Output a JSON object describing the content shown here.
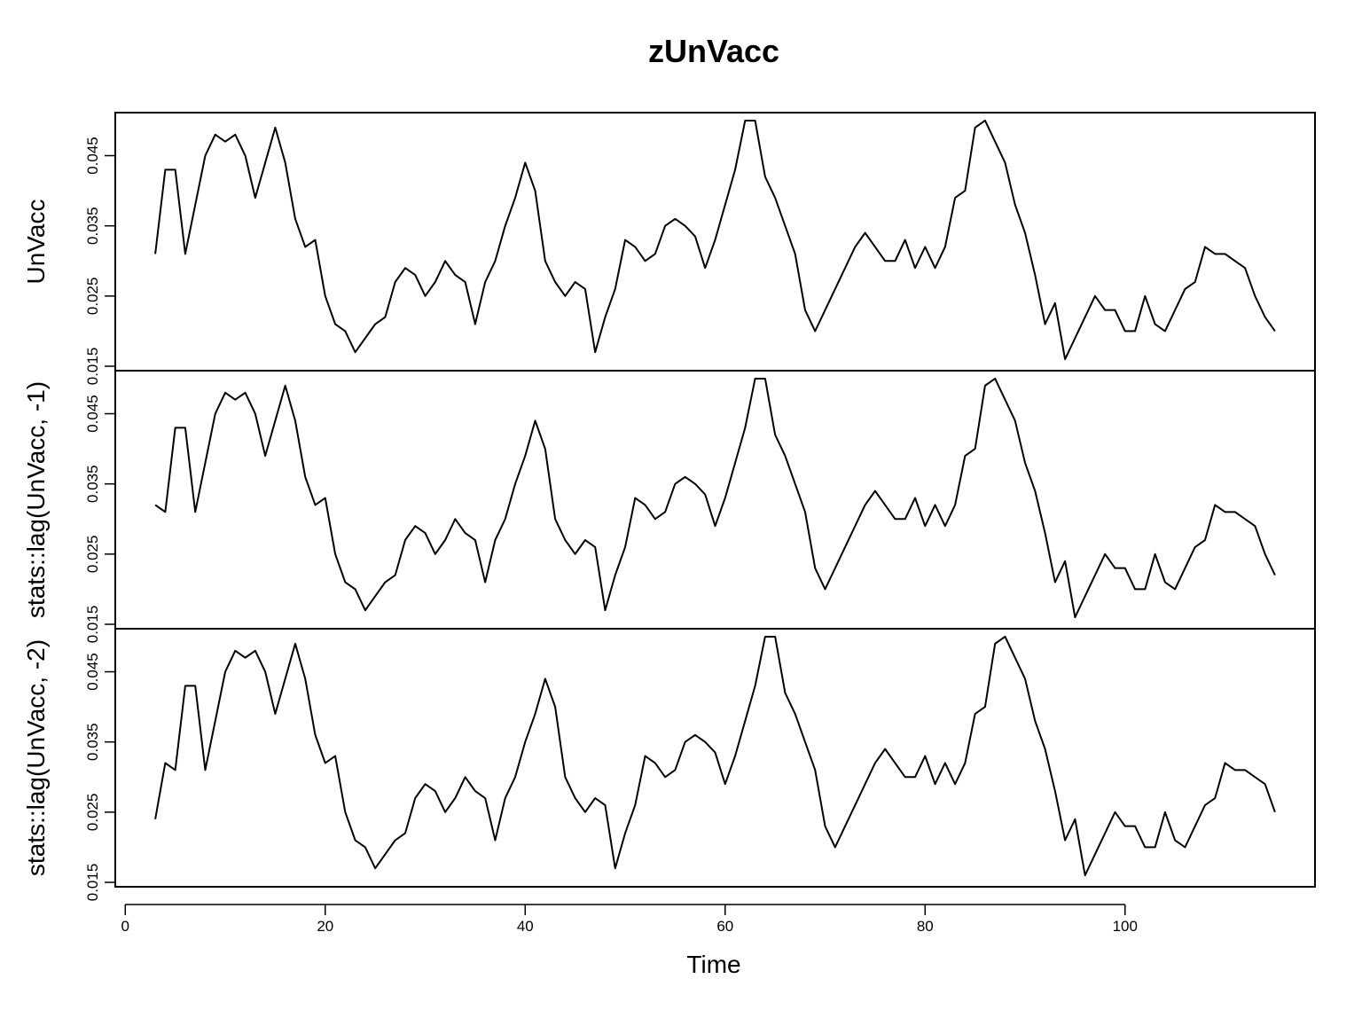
{
  "chart_data": {
    "type": "line",
    "title": "zUnVacc",
    "xlabel": "Time",
    "x_ticks": [
      "0",
      "20",
      "40",
      "60",
      "80",
      "100"
    ],
    "x_tick_values": [
      0,
      20,
      40,
      60,
      80,
      100
    ],
    "xlim": [
      -1,
      119
    ],
    "y_ticks": [
      "0.015",
      "0.025",
      "0.035",
      "0.045"
    ],
    "y_tick_values": [
      0.015,
      0.025,
      0.035,
      0.045
    ],
    "ylim": [
      0.015,
      0.0505
    ],
    "grid": false,
    "legend": "none",
    "series": [
      {
        "ylabel": "UnVacc",
        "x_start": 3,
        "values": [
          0.031,
          0.043,
          0.043,
          0.031,
          0.038,
          0.045,
          0.048,
          0.047,
          0.048,
          0.045,
          0.039,
          0.044,
          0.049,
          0.044,
          0.036,
          0.032,
          0.033,
          0.025,
          0.021,
          0.02,
          0.017,
          0.019,
          0.021,
          0.022,
          0.027,
          0.029,
          0.028,
          0.025,
          0.027,
          0.03,
          0.028,
          0.027,
          0.021,
          0.027,
          0.03,
          0.035,
          0.039,
          0.044,
          0.04,
          0.03,
          0.027,
          0.025,
          0.027,
          0.026,
          0.017,
          0.022,
          0.026,
          0.033,
          0.032,
          0.03,
          0.031,
          0.035,
          0.036,
          0.035,
          0.0335,
          0.029,
          0.033,
          0.038,
          0.043,
          0.05,
          0.05,
          0.042,
          0.039,
          0.035,
          0.031,
          0.023,
          0.02,
          0.023,
          0.026,
          0.029,
          0.032,
          0.034,
          0.032,
          0.03,
          0.03,
          0.033,
          0.029,
          0.032,
          0.029,
          0.032,
          0.039,
          0.04,
          0.049,
          0.05,
          0.047,
          0.044,
          0.038,
          0.034,
          0.028,
          0.021,
          0.024,
          0.016,
          0.019,
          0.022,
          0.025,
          0.023,
          0.023,
          0.02,
          0.02,
          0.025,
          0.021,
          0.02,
          0.023,
          0.026,
          0.027,
          0.032,
          0.031,
          0.031,
          0.03,
          0.029,
          0.025,
          0.022,
          0.02
        ]
      },
      {
        "ylabel": "stats::lag(UnVacc, -1)",
        "x_start": 3,
        "values": [
          0.032,
          0.031,
          0.043,
          0.043,
          0.031,
          0.038,
          0.045,
          0.048,
          0.047,
          0.048,
          0.045,
          0.039,
          0.044,
          0.049,
          0.044,
          0.036,
          0.032,
          0.033,
          0.025,
          0.021,
          0.02,
          0.017,
          0.019,
          0.021,
          0.022,
          0.027,
          0.029,
          0.028,
          0.025,
          0.027,
          0.03,
          0.028,
          0.027,
          0.021,
          0.027,
          0.03,
          0.035,
          0.039,
          0.044,
          0.04,
          0.03,
          0.027,
          0.025,
          0.027,
          0.026,
          0.017,
          0.022,
          0.026,
          0.033,
          0.032,
          0.03,
          0.031,
          0.035,
          0.036,
          0.035,
          0.0335,
          0.029,
          0.033,
          0.038,
          0.043,
          0.05,
          0.05,
          0.042,
          0.039,
          0.035,
          0.031,
          0.023,
          0.02,
          0.023,
          0.026,
          0.029,
          0.032,
          0.034,
          0.032,
          0.03,
          0.03,
          0.033,
          0.029,
          0.032,
          0.029,
          0.032,
          0.039,
          0.04,
          0.049,
          0.05,
          0.047,
          0.044,
          0.038,
          0.034,
          0.028,
          0.021,
          0.024,
          0.016,
          0.019,
          0.022,
          0.025,
          0.023,
          0.023,
          0.02,
          0.02,
          0.025,
          0.021,
          0.02,
          0.023,
          0.026,
          0.027,
          0.032,
          0.031,
          0.031,
          0.03,
          0.029,
          0.025,
          0.022
        ]
      },
      {
        "ylabel": "stats::lag(UnVacc, -2)",
        "x_start": 3,
        "values": [
          0.024,
          0.032,
          0.031,
          0.043,
          0.043,
          0.031,
          0.038,
          0.045,
          0.048,
          0.047,
          0.048,
          0.045,
          0.039,
          0.044,
          0.049,
          0.044,
          0.036,
          0.032,
          0.033,
          0.025,
          0.021,
          0.02,
          0.017,
          0.019,
          0.021,
          0.022,
          0.027,
          0.029,
          0.028,
          0.025,
          0.027,
          0.03,
          0.028,
          0.027,
          0.021,
          0.027,
          0.03,
          0.035,
          0.039,
          0.044,
          0.04,
          0.03,
          0.027,
          0.025,
          0.027,
          0.026,
          0.017,
          0.022,
          0.026,
          0.033,
          0.032,
          0.03,
          0.031,
          0.035,
          0.036,
          0.035,
          0.0335,
          0.029,
          0.033,
          0.038,
          0.043,
          0.05,
          0.05,
          0.042,
          0.039,
          0.035,
          0.031,
          0.023,
          0.02,
          0.023,
          0.026,
          0.029,
          0.032,
          0.034,
          0.032,
          0.03,
          0.03,
          0.033,
          0.029,
          0.032,
          0.029,
          0.032,
          0.039,
          0.04,
          0.049,
          0.05,
          0.047,
          0.044,
          0.038,
          0.034,
          0.028,
          0.021,
          0.024,
          0.016,
          0.019,
          0.022,
          0.025,
          0.023,
          0.023,
          0.02,
          0.02,
          0.025,
          0.021,
          0.02,
          0.023,
          0.026,
          0.027,
          0.032,
          0.031,
          0.031,
          0.03,
          0.029,
          0.025
        ]
      }
    ]
  }
}
